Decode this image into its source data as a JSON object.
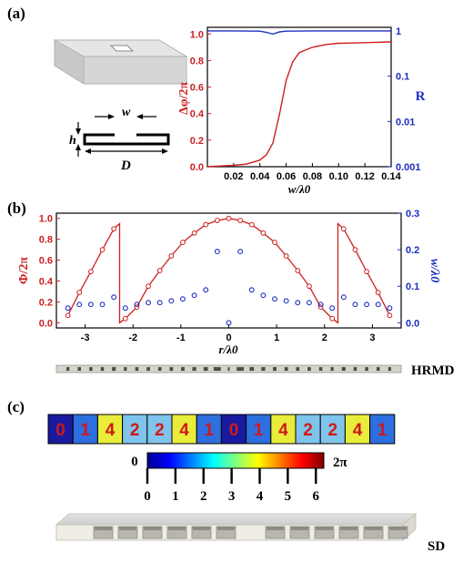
{
  "panel_labels": {
    "a": "(a)",
    "b": "(b)",
    "c": "(c)"
  },
  "schematic": {
    "w_label": "w",
    "h_label": "h",
    "D_label": "D"
  },
  "chart_data": [
    {
      "type": "line",
      "panel": "(a)",
      "xlabel": "w/λ0",
      "ylabel_left": "Δφ/2π",
      "ylabel_right": "R",
      "xlim": [
        0.0,
        0.14
      ],
      "ylim_left": [
        0,
        1.05
      ],
      "ylim_right": [
        0.001,
        1.2
      ],
      "right_scale": "log",
      "x_ticks": [
        "0.02",
        "0.04",
        "0.06",
        "0.08",
        "0.10",
        "0.12",
        "0.14"
      ],
      "y_left_ticks": [
        "0.0",
        "0.2",
        "0.4",
        "0.6",
        "0.8",
        "1.0"
      ],
      "y_right_ticks": [
        "0.001",
        "0.01",
        "0.1",
        "1"
      ],
      "series": [
        {
          "axis": "left",
          "color": "#cc1f1f",
          "x": [
            0.0,
            0.02,
            0.03,
            0.04,
            0.045,
            0.05,
            0.055,
            0.06,
            0.065,
            0.07,
            0.08,
            0.09,
            0.1,
            0.12,
            0.14
          ],
          "y": [
            0.0,
            0.01,
            0.02,
            0.05,
            0.09,
            0.18,
            0.4,
            0.65,
            0.79,
            0.86,
            0.9,
            0.92,
            0.93,
            0.935,
            0.94
          ]
        },
        {
          "axis": "right",
          "color": "#1d2ec0",
          "x": [
            0.0,
            0.02,
            0.04,
            0.045,
            0.05,
            0.055,
            0.06,
            0.08,
            0.1,
            0.12,
            0.14
          ],
          "y": [
            1.0,
            1.0,
            0.99,
            0.93,
            0.85,
            0.95,
            0.99,
            1.0,
            1.0,
            1.0,
            1.0
          ]
        }
      ]
    },
    {
      "type": "line",
      "panel": "(b)",
      "xlabel": "r/λ0",
      "ylabel_left": "Φ/2π",
      "ylabel_right": "w/λ0",
      "xlim": [
        -3.6,
        3.6
      ],
      "ylim_left": [
        -0.05,
        1.05
      ],
      "ylim_right": [
        -0.0143,
        0.3
      ],
      "x_ticks": [
        "-3",
        "-2",
        "-1",
        "0",
        "1",
        "2",
        "3"
      ],
      "y_left_ticks": [
        "0.0",
        "0.2",
        "0.4",
        "0.6",
        "0.8",
        "1.0"
      ],
      "y_right_ticks": [
        "0.0",
        "0.1",
        "0.2",
        "0.3"
      ],
      "series": [
        {
          "name": "phase",
          "axis": "left",
          "color": "#cc1f1f",
          "marker": "open-circle",
          "x": [
            -3.36,
            -3.12,
            -2.88,
            -2.64,
            -2.4,
            -2.16,
            -1.92,
            -1.68,
            -1.44,
            -1.2,
            -0.96,
            -0.72,
            -0.48,
            -0.24,
            0.0,
            0.24,
            0.48,
            0.72,
            0.96,
            1.2,
            1.44,
            1.68,
            1.92,
            2.16,
            2.4,
            2.64,
            2.88,
            3.12,
            3.36
          ],
          "y": [
            0.07,
            0.29,
            0.49,
            0.7,
            0.9,
            0.04,
            0.15,
            0.35,
            0.5,
            0.64,
            0.77,
            0.86,
            0.94,
            0.98,
            1.0,
            0.98,
            0.94,
            0.86,
            0.77,
            0.64,
            0.5,
            0.35,
            0.15,
            0.04,
            0.9,
            0.7,
            0.49,
            0.29,
            0.07
          ]
        },
        {
          "name": "width",
          "axis": "right",
          "color": "#1d2ec0",
          "marker": "open-circle",
          "x": [
            -3.36,
            -3.12,
            -2.88,
            -2.64,
            -2.4,
            -2.16,
            -1.92,
            -1.68,
            -1.44,
            -1.2,
            -0.96,
            -0.72,
            -0.48,
            -0.24,
            0.0,
            0.24,
            0.48,
            0.72,
            0.96,
            1.2,
            1.44,
            1.68,
            1.92,
            2.16,
            2.4,
            2.64,
            2.88,
            3.12,
            3.36
          ],
          "y": [
            0.04,
            0.05,
            0.05,
            0.05,
            0.07,
            0.04,
            0.05,
            0.055,
            0.055,
            0.06,
            0.065,
            0.075,
            0.09,
            0.195,
            0.0,
            0.195,
            0.09,
            0.075,
            0.065,
            0.06,
            0.055,
            0.055,
            0.05,
            0.04,
            0.07,
            0.05,
            0.05,
            0.05,
            0.04
          ]
        }
      ]
    }
  ],
  "hrmd_label": "HRMD",
  "sd_label": "SD",
  "code_strip": {
    "values": [
      "0",
      "1",
      "4",
      "2",
      "2",
      "4",
      "1",
      "0",
      "1",
      "4",
      "2",
      "2",
      "4",
      "1"
    ],
    "colors": [
      "#1a1aa0",
      "#2e6fe0",
      "#e9ec3a",
      "#7fc4ec",
      "#7fc4ec",
      "#e9ec3a",
      "#2e6fe0",
      "#1a1aa0",
      "#2e6fe0",
      "#e9ec3a",
      "#7fc4ec",
      "#7fc4ec",
      "#e9ec3a",
      "#2e6fe0"
    ]
  },
  "colorbar": {
    "min_label": "0",
    "max_label": "2π",
    "ticks": [
      "0",
      "1",
      "2",
      "3",
      "4",
      "5",
      "6"
    ]
  }
}
